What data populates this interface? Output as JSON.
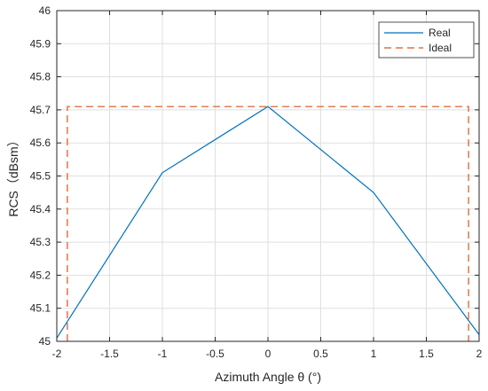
{
  "chart_data": {
    "type": "line",
    "title": "",
    "xlabel": "Azimuth Angle θ (°)",
    "ylabel": "RCS（dBsm）",
    "xlim": [
      -2,
      2
    ],
    "ylim": [
      45,
      46
    ],
    "xticks": [
      -2,
      -1.5,
      -1,
      -0.5,
      0,
      0.5,
      1,
      1.5,
      2
    ],
    "xtick_labels": [
      "-2",
      "-1.5",
      "-1",
      "-0.5",
      "0",
      "0.5",
      "1",
      "1.5",
      "2"
    ],
    "yticks": [
      45,
      45.1,
      45.2,
      45.3,
      45.4,
      45.5,
      45.6,
      45.7,
      45.8,
      45.9,
      46
    ],
    "ytick_labels": [
      "45",
      "45.1",
      "45.2",
      "45.3",
      "45.4",
      "45.5",
      "45.6",
      "45.7",
      "45.8",
      "45.9",
      "46"
    ],
    "grid": true,
    "legend_position": "top-right",
    "series": [
      {
        "name": "Real",
        "color": "#0072BD",
        "style": "solid",
        "x": [
          -2,
          -1,
          0,
          1,
          2
        ],
        "y": [
          45.01,
          45.51,
          45.71,
          45.45,
          45.02
        ]
      },
      {
        "name": "Ideal",
        "color": "#D95319",
        "style": "dashed",
        "x": [
          -1.9,
          -1.9,
          1.9,
          1.9
        ],
        "y": [
          45,
          45.71,
          45.71,
          45
        ]
      }
    ]
  }
}
